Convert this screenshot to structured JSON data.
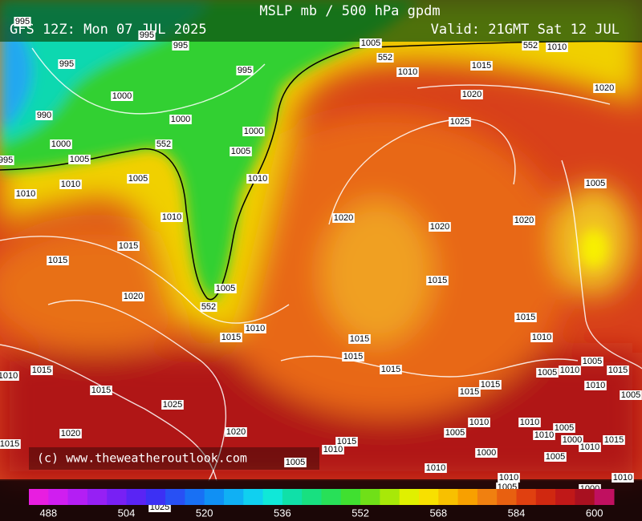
{
  "header": {
    "title": "MSLP mb / 500 hPa gpdm",
    "run": "GFS 12Z: Mon 07 JUL 2025",
    "valid": "Valid: 21GMT Sat 12 JUL"
  },
  "copyright": "(c) www.theweatheroutlook.com",
  "colorbar": {
    "range": [
      484,
      604
    ],
    "labels": [
      488,
      504,
      520,
      536,
      552,
      568,
      584,
      600
    ],
    "colors": [
      "#e81ee0",
      "#d01ef0",
      "#b41ef4",
      "#9620f4",
      "#7820f4",
      "#5a24f4",
      "#3c30f4",
      "#2850f4",
      "#1870f4",
      "#1090f4",
      "#10b0f4",
      "#10d0f0",
      "#10e8d8",
      "#10e0a8",
      "#18e080",
      "#28e058",
      "#40e030",
      "#70e018",
      "#a8e808",
      "#e0f000",
      "#f8e000",
      "#f8c000",
      "#f8a000",
      "#f08010",
      "#e86010",
      "#e04010",
      "#d02810",
      "#c01818",
      "#a81020",
      "#c01060"
    ]
  },
  "isobar_labels": [
    "995",
    "995",
    "995",
    "995",
    "995",
    "1000",
    "990",
    "1000",
    "1000",
    "1000",
    "995",
    "1005",
    "552",
    "1005",
    "1005",
    "1010",
    "1010",
    "1010",
    "1010",
    "1005",
    "552",
    "1010",
    "552",
    "1010",
    "1015",
    "1020",
    "1020",
    "1025",
    "1005",
    "1020",
    "1020",
    "1020",
    "1015",
    "1015",
    "1005",
    "1015",
    "552",
    "1020",
    "1015",
    "1010",
    "1015",
    "1015",
    "1010",
    "1015",
    "1015",
    "1010",
    "1015",
    "1005",
    "1010",
    "1005",
    "1015",
    "1015",
    "1015",
    "1015",
    "1010",
    "1005",
    "1025",
    "1010",
    "1010",
    "1005",
    "1005",
    "1010",
    "1000",
    "1010",
    "1015",
    "1020",
    "1020",
    "1015",
    "1015",
    "1010",
    "1000",
    "1005",
    "1005",
    "1010",
    "1010",
    "1005",
    "1000",
    "1010",
    "1025"
  ]
}
